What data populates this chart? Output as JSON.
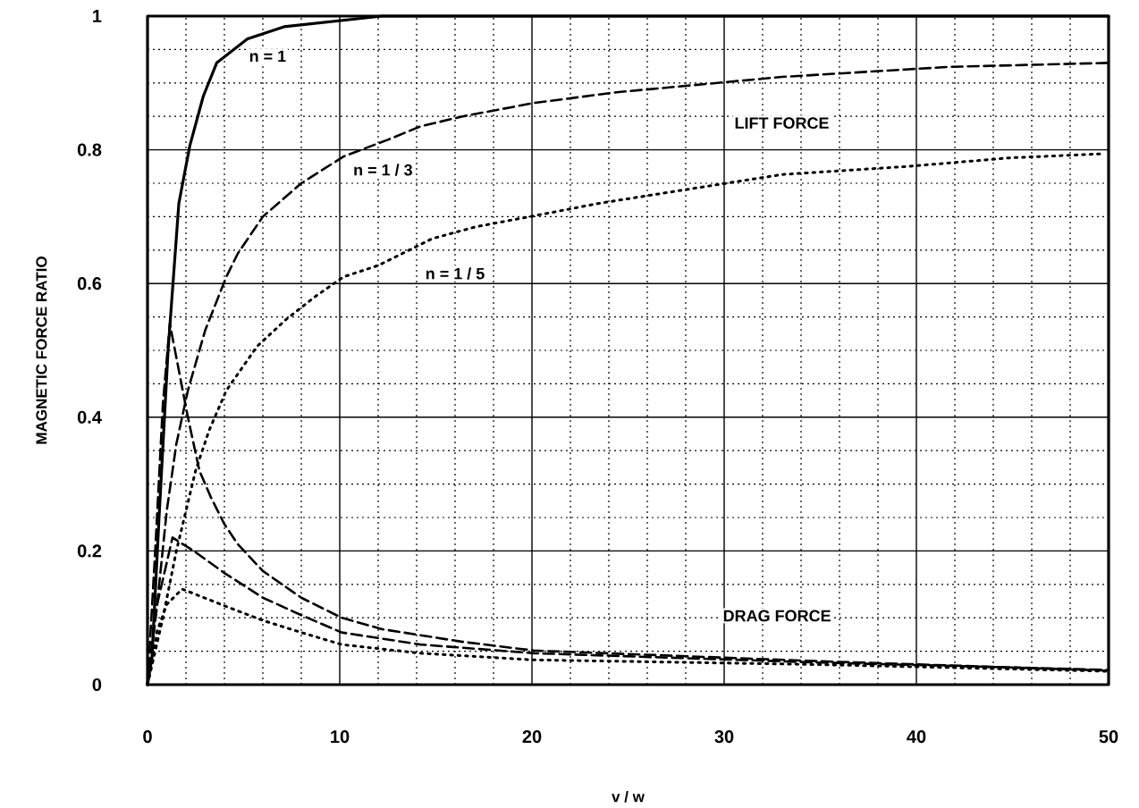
{
  "chart_data": {
    "type": "line",
    "xlabel": "v / w",
    "ylabel": "MAGNETIC FORCE RATIO",
    "xlim": [
      0,
      50
    ],
    "ylim": [
      0,
      1
    ],
    "xticks": [
      0,
      10,
      20,
      30,
      40,
      50
    ],
    "yticks": [
      0,
      0.2,
      0.4,
      0.6,
      0.8,
      1
    ],
    "grid": true,
    "series": [
      {
        "color": "#000000",
        "line_style": "solid",
        "x": [
          0,
          0.23,
          0.6,
          1.07,
          1.63,
          2.2,
          2.9,
          3.6,
          5.2,
          7.1,
          12.2,
          20,
          30,
          40,
          50
        ],
        "values": [
          0,
          0.04,
          0.25,
          0.5,
          0.72,
          0.806,
          0.88,
          0.93,
          0.966,
          0.984,
          1.0,
          1.0,
          1.0,
          1.0,
          1.0
        ]
      },
      {
        "color": "#000000",
        "line_style": "dashed",
        "x": [
          0,
          0.5,
          1,
          1.5,
          2.1,
          3.0,
          4.1,
          4.7,
          6.0,
          8.0,
          10.2,
          12.5,
          14.2,
          16.4,
          20.1,
          24.4,
          33,
          41.7,
          50
        ],
        "values": [
          0,
          0.12,
          0.26,
          0.36,
          0.44,
          0.53,
          0.61,
          0.645,
          0.7,
          0.75,
          0.79,
          0.815,
          0.835,
          0.85,
          0.87,
          0.886,
          0.909,
          0.924,
          0.93
        ]
      },
      {
        "color": "#000000",
        "line_style": "dotted",
        "x": [
          0,
          0.8,
          1.5,
          2.5,
          3.2,
          4.1,
          5.7,
          7.2,
          8.7,
          10.2,
          12,
          14.8,
          17.1,
          19.9,
          23.5,
          27.9,
          33,
          39.5,
          44.9,
          49.7
        ],
        "values": [
          0,
          0.1,
          0.2,
          0.32,
          0.38,
          0.44,
          0.506,
          0.546,
          0.58,
          0.61,
          0.627,
          0.667,
          0.685,
          0.7,
          0.72,
          0.74,
          0.763,
          0.775,
          0.788,
          0.794
        ]
      },
      {
        "color": "#000000",
        "line_style": "dashed",
        "x": [
          0,
          0.4,
          0.8,
          1.16,
          2.1,
          2.7,
          3.3,
          4.0,
          4.7,
          6.0,
          8.0,
          10.1,
          12.2,
          16.4,
          20.1,
          35,
          50
        ],
        "values": [
          0,
          0.2,
          0.42,
          0.54,
          0.4,
          0.32,
          0.28,
          0.24,
          0.21,
          0.17,
          0.13,
          0.1,
          0.083,
          0.064,
          0.051,
          0.035,
          0.021
        ]
      },
      {
        "color": "#000000",
        "line_style": "dashed",
        "x": [
          0,
          0.5,
          1.3,
          2.4,
          4,
          6,
          8,
          10.1,
          14.2,
          20.1,
          35,
          50
        ],
        "values": [
          0,
          0.12,
          0.22,
          0.2,
          0.167,
          0.13,
          0.104,
          0.078,
          0.06,
          0.047,
          0.033,
          0.022
        ]
      },
      {
        "color": "#000000",
        "line_style": "dotted",
        "x": [
          0,
          0.5,
          1,
          1.8,
          4,
          6,
          8,
          10.1,
          14.2,
          20.1,
          35,
          50
        ],
        "values": [
          0,
          0.08,
          0.12,
          0.143,
          0.118,
          0.096,
          0.078,
          0.06,
          0.047,
          0.037,
          0.03,
          0.02
        ]
      }
    ],
    "annotations": [
      "n = 1",
      "n = 1 / 3",
      "n = 1 / 5",
      "LIFT FORCE",
      "DRAG FORCE"
    ]
  }
}
